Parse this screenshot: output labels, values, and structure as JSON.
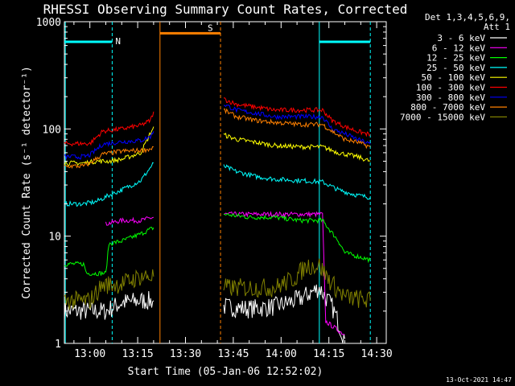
{
  "chart_data": {
    "type": "line",
    "title": "RHESSI Observing Summary Count Rates, Corrected",
    "xlabel": "Start Time (05-Jan-06 12:52:02)",
    "ylabel": "Corrected Count Rate (s⁻¹ detector⁻¹)",
    "yscale": "log",
    "ylim": [
      1,
      1000
    ],
    "xlim_minutes": [
      52.0,
      153.0
    ],
    "x_ticks": [
      "13:00",
      "13:15",
      "13:30",
      "13:45",
      "14:00",
      "14:15",
      "14:30"
    ],
    "x_tick_minutes": [
      60,
      75,
      90,
      105,
      120,
      135,
      150
    ],
    "y_ticks": [
      "1",
      "10",
      "100",
      "1000"
    ],
    "y_tick_values": [
      1,
      10,
      100,
      1000
    ],
    "legend": {
      "header": "Det 1,3,4,5,6,9,",
      "subheader": "Att 1",
      "placement": "top-right"
    },
    "series": [
      {
        "name": "3 - 6 keV",
        "color": "#ffffff",
        "segments": [
          {
            "x": [
              52,
              65,
              70,
              76,
              80
            ],
            "y": [
              2.0,
              2.0,
              2.4,
              2.5,
              2.5
            ]
          },
          {
            "x": [
              102,
              110,
              118,
              126,
              132,
              136,
              140
            ],
            "y": [
              2.2,
              2.1,
              2.2,
              2.6,
              3.3,
              2.2,
              1.1
            ]
          }
        ]
      },
      {
        "name": "6 - 12 keV",
        "color": "#ff00ff",
        "segments": [
          {
            "x": [
              65,
              70,
              76,
              80
            ],
            "y": [
              13,
              14,
              14,
              15
            ]
          },
          {
            "x": [
              102,
              110,
              118,
              126,
              133,
              134,
              140
            ],
            "y": [
              16,
              16,
              16,
              16,
              16,
              1.6,
              1.2
            ]
          }
        ]
      },
      {
        "name": "12 - 25 keV",
        "color": "#00ff00",
        "segments": [
          {
            "x": [
              52,
              58,
              59,
              65,
              66,
              70,
              76,
              80
            ],
            "y": [
              5.5,
              5.5,
              4.5,
              4.5,
              8.5,
              9,
              10.5,
              12
            ]
          },
          {
            "x": [
              102,
              110,
              118,
              126,
              133,
              138,
              140,
              148
            ],
            "y": [
              16,
              15,
              15,
              14,
              14,
              9,
              7,
              6
            ]
          }
        ]
      },
      {
        "name": "25 - 50 keV",
        "color": "#00ffff",
        "segments": [
          {
            "x": [
              52,
              58,
              62,
              66,
              70,
              76,
              80
            ],
            "y": [
              20,
              20,
              21,
              24,
              27,
              33,
              48
            ]
          },
          {
            "x": [
              102,
              106,
              112,
              118,
              126,
              133,
              138,
              144,
              148
            ],
            "y": [
              45,
              40,
              36,
              34,
              33,
              32,
              27,
              24,
              23
            ]
          }
        ]
      },
      {
        "name": "50 - 100 keV",
        "color": "#ffff00",
        "segments": [
          {
            "x": [
              52,
              58,
              62,
              66,
              70,
              76,
              80
            ],
            "y": [
              48,
              48,
              50,
              50,
              52,
              60,
              105
            ]
          },
          {
            "x": [
              102,
              106,
              112,
              118,
              126,
              133,
              138,
              144,
              148
            ],
            "y": [
              88,
              80,
              75,
              70,
              68,
              68,
              60,
              55,
              50
            ]
          }
        ]
      },
      {
        "name": "100 - 300 keV",
        "color": "#ff0000",
        "segments": [
          {
            "x": [
              52,
              58,
              60,
              64,
              70,
              76,
              79,
              80
            ],
            "y": [
              73,
              73,
              73,
              95,
              100,
              108,
              120,
              145
            ]
          },
          {
            "x": [
              102,
              106,
              112,
              118,
              126,
              133,
              136,
              140,
              144,
              148
            ],
            "y": [
              190,
              170,
              160,
              150,
              150,
              150,
              120,
              105,
              95,
              88
            ]
          }
        ]
      },
      {
        "name": "300 - 800 keV",
        "color": "#0000ff",
        "segments": [
          {
            "x": [
              52,
              58,
              60,
              64,
              70,
              76,
              79,
              80
            ],
            "y": [
              55,
              55,
              57,
              72,
              76,
              78,
              85,
              95
            ]
          },
          {
            "x": [
              102,
              106,
              112,
              118,
              126,
              133,
              136,
              140,
              144,
              148
            ],
            "y": [
              170,
              150,
              140,
              130,
              130,
              130,
              100,
              90,
              80,
              72
            ]
          }
        ]
      },
      {
        "name": "800 - 7000 keV",
        "color": "#ff8000",
        "segments": [
          {
            "x": [
              52,
              58,
              60,
              64,
              70,
              76,
              79,
              80
            ],
            "y": [
              45,
              45,
              48,
              58,
              62,
              63,
              65,
              68
            ]
          },
          {
            "x": [
              102,
              106,
              112,
              118,
              126,
              133,
              136,
              140,
              144,
              148
            ],
            "y": [
              150,
              130,
              120,
              115,
              110,
              110,
              95,
              80,
              75,
              68
            ]
          }
        ]
      },
      {
        "name": "7000 - 15000 keV",
        "color": "#808000",
        "segments": [
          {
            "x": [
              52,
              58,
              60,
              64,
              70,
              76,
              80
            ],
            "y": [
              2.5,
              2.5,
              2.5,
              3.5,
              3.6,
              4.2,
              4.2
            ]
          },
          {
            "x": [
              102,
              110,
              118,
              124,
              128,
              132,
              136,
              140,
              148
            ],
            "y": [
              3.3,
              3.3,
              3.3,
              4.0,
              5.3,
              5.3,
              3.6,
              2.7,
              2.5
            ]
          }
        ]
      }
    ],
    "annotations": [
      {
        "text": "N",
        "color": "#00ffff",
        "bar_start": 52,
        "bar_end": 67,
        "bar_level": 650
      },
      {
        "text": "",
        "color": "#00ffff",
        "bar_start": 132,
        "bar_end": 148,
        "bar_level": 650
      },
      {
        "text": "S",
        "color": "#ff8000",
        "bar_start": 82,
        "bar_end": 101,
        "bar_level": 780
      }
    ],
    "vertical_lines": [
      {
        "x": 52.3,
        "color": "#00ffff",
        "style": "solid"
      },
      {
        "x": 67,
        "color": "#00ffff",
        "style": "dashed"
      },
      {
        "x": 82,
        "color": "#ff8000",
        "style": "solid"
      },
      {
        "x": 101,
        "color": "#ff8000",
        "style": "dashed"
      },
      {
        "x": 132,
        "color": "#00ffff",
        "style": "solid"
      },
      {
        "x": 148,
        "color": "#00ffff",
        "style": "dashed"
      }
    ]
  },
  "footer_date": "13-Oct-2021 14:47"
}
